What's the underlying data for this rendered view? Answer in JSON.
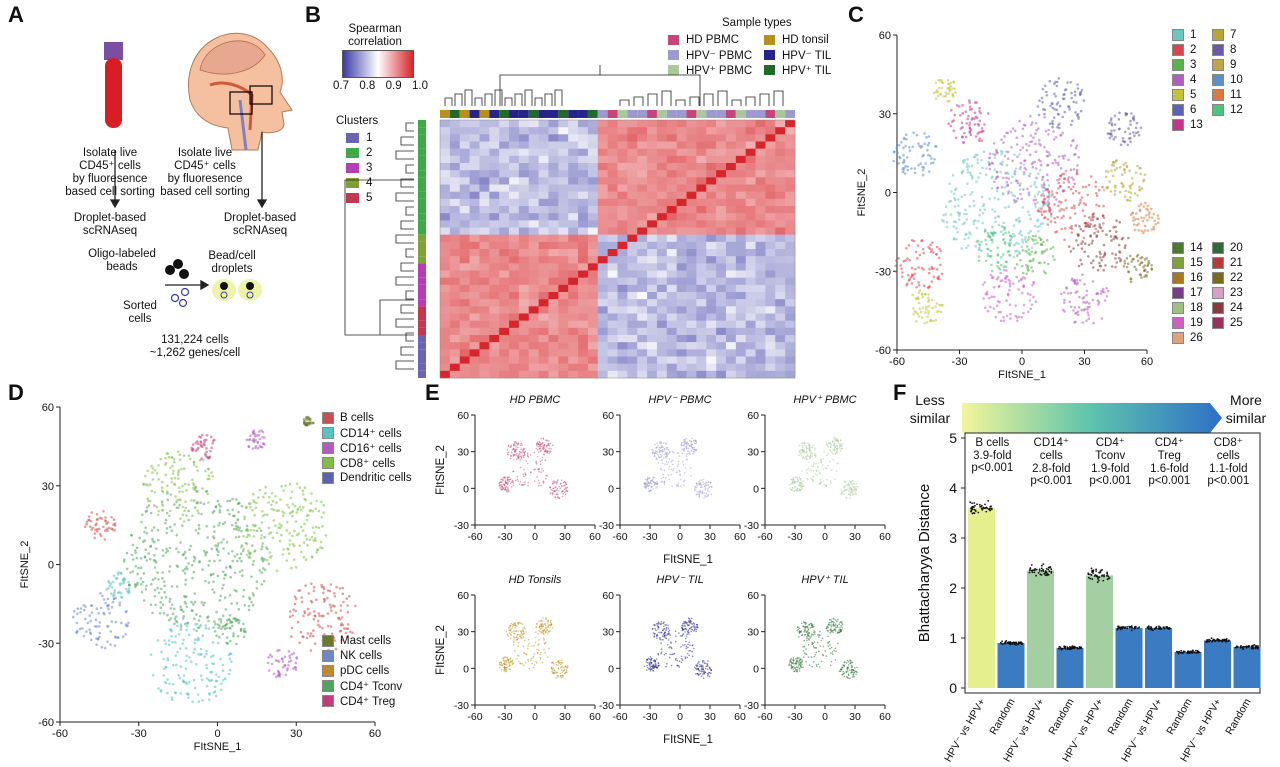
{
  "panel_labels": {
    "a": "A",
    "b": "B",
    "c": "C",
    "d": "D",
    "e": "E",
    "f": "F"
  },
  "colors": {
    "heat_high": "#d7262b",
    "heat_low": "#3b3ba8",
    "hd_pbmc": "#c8457a",
    "hpv_neg_pbmc": "#9c9ad0",
    "hpv_pos_pbmc": "#a8c99a",
    "hd_tonsil": "#b8901e",
    "hpv_neg_til": "#26238a",
    "hpv_pos_til": "#1f6b2a"
  },
  "panel_a": {
    "left_steps": [
      "Isolate live",
      "CD45⁺ cells",
      "by fluoresence",
      "based cell sorting"
    ],
    "left_method": [
      "Droplet-based",
      "scRNAseq"
    ],
    "right_steps": [
      "Isolate live",
      "CD45⁺ cells",
      "by fluoresence",
      "based cell sorting"
    ],
    "right_method": [
      "Droplet-based",
      "scRNAseq"
    ],
    "beads_label": [
      "Oligo-labeled",
      "beads"
    ],
    "droplets_label": [
      "Bead/cell",
      "droplets"
    ],
    "sorted_label": [
      "Sorted",
      "cells"
    ],
    "summary": [
      "131,224 cells",
      "~1,262 genes/cell"
    ]
  },
  "panel_b": {
    "scale_title": [
      "Spearman",
      "correlation"
    ],
    "scale_ticks": [
      "0.7",
      "0.8",
      "0.9",
      "1.0"
    ],
    "sample_types_title": "Sample types",
    "sample_types": [
      {
        "label": "HD PBMC",
        "color": "#c8457a"
      },
      {
        "label": "HD tonsil",
        "color": "#b8901e"
      },
      {
        "label": "HPV⁻ PBMC",
        "color": "#9c9ad0"
      },
      {
        "label": "HPV⁻ TIL",
        "color": "#26238a"
      },
      {
        "label": "HPV⁺ PBMC",
        "color": "#a8c99a"
      },
      {
        "label": "HPV⁺ TIL",
        "color": "#1f6b2a"
      }
    ],
    "clusters_title": "Clusters",
    "clusters": [
      {
        "label": "1",
        "color": "#6b63b5"
      },
      {
        "label": "2",
        "color": "#3fa94a"
      },
      {
        "label": "3",
        "color": "#b43fb4"
      },
      {
        "label": "4",
        "color": "#7fa135"
      },
      {
        "label": "5",
        "color": "#c0394f"
      }
    ]
  },
  "panel_c": {
    "xlabel": "FItSNE_1",
    "ylabel": "FItSNE_2",
    "xticks": [
      "-60",
      "-30",
      "0",
      "30",
      "60"
    ],
    "yticks": [
      "60",
      "30",
      "0",
      "-30",
      "-60"
    ],
    "legend_top": [
      {
        "label": "1",
        "color": "#6cc7c4"
      },
      {
        "label": "7",
        "color": "#b8a437"
      },
      {
        "label": "2",
        "color": "#d9454e"
      },
      {
        "label": "8",
        "color": "#6a59a6"
      },
      {
        "label": "3",
        "color": "#58b548"
      },
      {
        "label": "9",
        "color": "#c1a54d"
      },
      {
        "label": "4",
        "color": "#b25fc2"
      },
      {
        "label": "10",
        "color": "#5a8fc9"
      },
      {
        "label": "5",
        "color": "#c2c436"
      },
      {
        "label": "11",
        "color": "#d97a3e"
      },
      {
        "label": "6",
        "color": "#5c63b4"
      },
      {
        "label": "12",
        "color": "#4cc37e"
      },
      {
        "label": "13",
        "color": "#c8338d"
      }
    ],
    "legend_bottom": [
      {
        "label": "14",
        "color": "#4a7c2e"
      },
      {
        "label": "20",
        "color": "#2f6a3b"
      },
      {
        "label": "15",
        "color": "#7aa33b"
      },
      {
        "label": "21",
        "color": "#b83a3a"
      },
      {
        "label": "16",
        "color": "#a8781e"
      },
      {
        "label": "22",
        "color": "#7a6a1f"
      },
      {
        "label": "17",
        "color": "#7a3b8a"
      },
      {
        "label": "23",
        "color": "#d7a0c9"
      },
      {
        "label": "18",
        "color": "#9ec080"
      },
      {
        "label": "24",
        "color": "#8a3a3a"
      },
      {
        "label": "19",
        "color": "#d05fc4"
      },
      {
        "label": "25",
        "color": "#9c3060"
      },
      {
        "label": "26",
        "color": "#e0a27a"
      }
    ]
  },
  "panel_d": {
    "xlabel": "FItSNE_1",
    "ylabel": "FItSNE_2",
    "xticks": [
      "-60",
      "-30",
      "0",
      "30",
      "60"
    ],
    "yticks": [
      "60",
      "30",
      "0",
      "-30",
      "-60"
    ],
    "legend_top": [
      {
        "label": "B cells",
        "color": "#c9504e"
      },
      {
        "label": "CD14⁺ cells",
        "color": "#55c3c0"
      },
      {
        "label": "CD16⁺ cells",
        "color": "#b45bc2"
      },
      {
        "label": "CD8⁺ cells",
        "color": "#7fc044"
      },
      {
        "label": "Dendritic cells",
        "color": "#5c62b2"
      }
    ],
    "legend_bottom": [
      {
        "label": "Mast cells",
        "color": "#6a7a2a"
      },
      {
        "label": "NK cells",
        "color": "#6f87c8"
      },
      {
        "label": "pDC cells",
        "color": "#c48a2a"
      },
      {
        "label": "CD4⁺ Tconv",
        "color": "#4fa55f"
      },
      {
        "label": "CD4⁺ Treg",
        "color": "#c73a7a"
      }
    ]
  },
  "panel_e": {
    "xlabel": "FItSNE_1",
    "ylabel": "FItSNE_2",
    "xticks": [
      "-60",
      "-30",
      "0",
      "30",
      "60"
    ],
    "yticks": [
      "60",
      "30",
      "0",
      "-30"
    ],
    "subplots": [
      {
        "title": "HD PBMC",
        "color": "#c8457a"
      },
      {
        "title": "HPV⁻ PBMC",
        "color": "#9c9ad0"
      },
      {
        "title": "HPV⁺ PBMC",
        "color": "#a8c99a"
      },
      {
        "title": "HD Tonsils",
        "color": "#b8901e"
      },
      {
        "title": "HPV⁻ TIL",
        "color": "#26238a"
      },
      {
        "title": "HPV⁺ TIL",
        "color": "#1f6b2a"
      }
    ]
  },
  "chart_data": {
    "type": "bar",
    "title": "",
    "ylabel": "Bhattacharyya Distance",
    "xlabel": "",
    "ylim": [
      0,
      5
    ],
    "yticks": [
      "0",
      "1",
      "2",
      "3",
      "4",
      "5"
    ],
    "gradient_left": [
      "Less",
      "similar"
    ],
    "gradient_right": [
      "More",
      "similar"
    ],
    "categories": [
      "HPV⁻ vs HPV+",
      "Random",
      "HPV⁻ vs HPV+",
      "Random",
      "HPV⁻ vs HPV+",
      "Random",
      "HPV⁻ vs HPV+",
      "Random",
      "HPV⁻ vs HPV+",
      "Random"
    ],
    "values": [
      3.6,
      0.9,
      2.35,
      0.8,
      2.25,
      1.2,
      1.2,
      0.72,
      0.95,
      0.82
    ],
    "bar_colors": [
      "#e6ef8e",
      "#3a7bc2",
      "#a3cfa2",
      "#3a7bc2",
      "#a3cfa2",
      "#3a7bc2",
      "#3a7bc2",
      "#3a7bc2",
      "#3a7bc2",
      "#3a7bc2"
    ],
    "groups": [
      {
        "name": "B cells",
        "lines": [
          "B cells"
        ],
        "fold": "3.9-fold",
        "p": "p<0.001"
      },
      {
        "name": "CD14+ cells",
        "lines": [
          "CD14⁺",
          "cells"
        ],
        "fold": "2.8-fold",
        "p": "p<0.001"
      },
      {
        "name": "CD4+ Tconv",
        "lines": [
          "CD4⁺",
          "Tconv"
        ],
        "fold": "1.9-fold",
        "p": "p<0.001"
      },
      {
        "name": "CD4+ Treg",
        "lines": [
          "CD4⁺",
          "Treg"
        ],
        "fold": "1.6-fold",
        "p": "p<0.001"
      },
      {
        "name": "CD8+ cells",
        "lines": [
          "CD8⁺",
          "cells"
        ],
        "fold": "1.1-fold",
        "p": "p<0.001"
      }
    ]
  }
}
